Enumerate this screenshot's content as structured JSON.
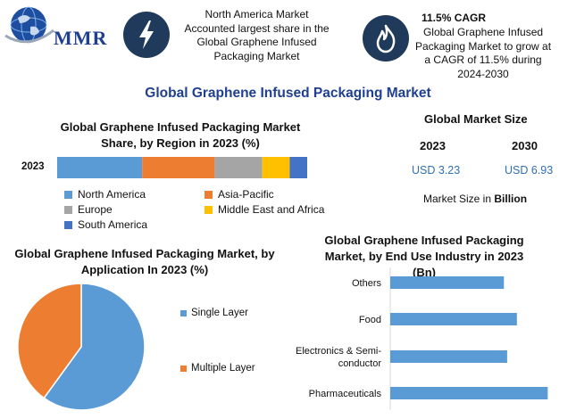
{
  "brand": {
    "name": "MMR"
  },
  "highlights": [
    {
      "icon": "lightning-icon",
      "text": "North America Market Accounted largest share in the Global Graphene Infused Packaging Market"
    },
    {
      "icon": "flame-icon",
      "heading": "11.5% CAGR",
      "text": "Global Graphene Infused Packaging Market to grow at a CAGR of 11.5% during 2024-2030"
    }
  ],
  "main_title": "Global Graphene Infused Packaging Market",
  "market_size": {
    "title": "Global Market Size",
    "years": [
      "2023",
      "2030"
    ],
    "values": [
      "USD 3.23",
      "USD 6.93"
    ],
    "note_prefix": "Market Size in ",
    "note_unit": "Billion"
  },
  "colors": {
    "blue": "#5b9bd5",
    "orange": "#ed7d31",
    "gray": "#a5a5a5",
    "yellow": "#ffc000",
    "darkblue": "#4472c4",
    "icon_bg": "#1f3a5a",
    "title_blue": "#1f3f8f"
  },
  "chart_data": [
    {
      "type": "bar",
      "orientation": "horizontal-stacked",
      "title": "Global Graphene Infused Packaging Market Share, by Region in 2023 (%)",
      "categories": [
        "2023"
      ],
      "series": [
        {
          "name": "North America",
          "values": [
            34
          ]
        },
        {
          "name": "Asia-Pacific",
          "values": [
            29
          ]
        },
        {
          "name": "Europe",
          "values": [
            19
          ]
        },
        {
          "name": "Middle East and Africa",
          "values": [
            11
          ]
        },
        {
          "name": "South America",
          "values": [
            7
          ]
        }
      ],
      "legend": "bottom"
    },
    {
      "type": "pie",
      "title": "Global Graphene Infused Packaging Market, by Application In 2023 (%)",
      "labels": [
        "Single Layer",
        "Multiple Layer"
      ],
      "values": [
        60,
        40
      ],
      "legend": "right"
    },
    {
      "type": "bar",
      "orientation": "horizontal",
      "title": "Global Graphene Infused Packaging Market, by End Use Industry in 2023 (Bn)",
      "categories": [
        "Others",
        "Food",
        "Electronics & Semi-conductor",
        "Pharmaceuticals"
      ],
      "category_lines": [
        [
          "Others"
        ],
        [
          "Food"
        ],
        [
          "Electronics & Semi-",
          "conductor"
        ],
        [
          "Pharmaceuticals"
        ]
      ],
      "values": [
        0.7,
        0.78,
        0.72,
        0.97
      ],
      "xlim": [
        0,
        1.1
      ]
    }
  ]
}
